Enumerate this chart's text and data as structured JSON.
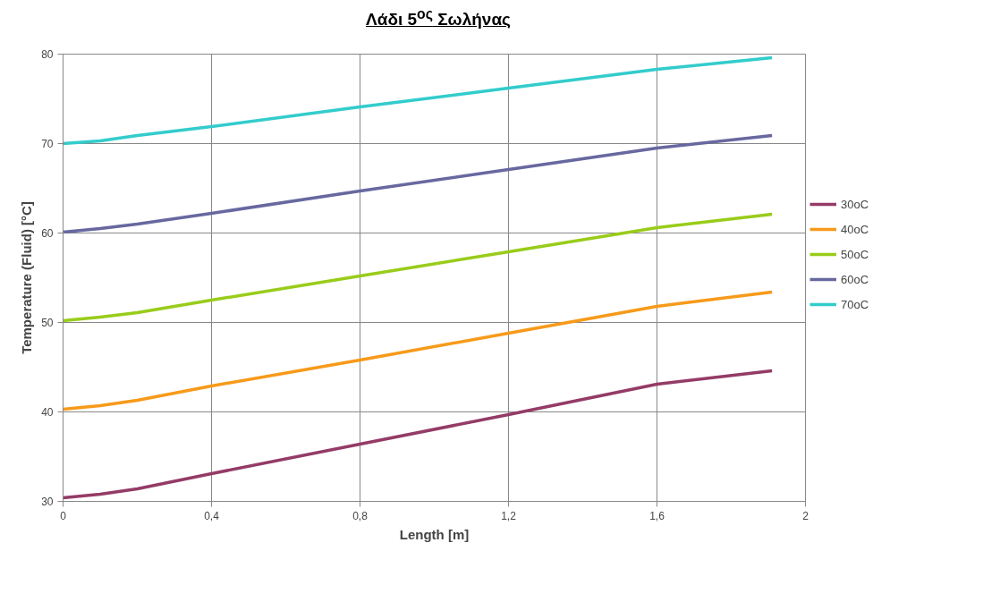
{
  "chart_data": {
    "type": "line",
    "title": "Λάδι 5$^{ος}$ Σωλήνας",
    "xlabel": "Length [m]",
    "ylabel": "Temperature (Fluid) [°C]",
    "x": [
      0,
      0.1,
      0.2,
      0.4,
      0.8,
      1.2,
      1.6,
      1.91
    ],
    "series": [
      {
        "name": "30oC",
        "color": "#943b66",
        "values": [
          30.4,
          30.8,
          31.4,
          33.1,
          36.4,
          39.7,
          43.1,
          44.6
        ]
      },
      {
        "name": "40oC",
        "color": "#f79a1a",
        "values": [
          40.3,
          40.7,
          41.3,
          42.9,
          45.8,
          48.8,
          51.8,
          53.4
        ]
      },
      {
        "name": "50oC",
        "color": "#99cc1a",
        "values": [
          50.2,
          50.6,
          51.1,
          52.5,
          55.2,
          57.9,
          60.6,
          62.1
        ]
      },
      {
        "name": "60oC",
        "color": "#6868a0",
        "values": [
          60.1,
          60.5,
          61.0,
          62.2,
          64.7,
          67.1,
          69.5,
          70.9
        ]
      },
      {
        "name": "70oC",
        "color": "#33cccc",
        "values": [
          70.0,
          70.3,
          70.9,
          71.9,
          74.1,
          76.2,
          78.3,
          79.6
        ]
      }
    ],
    "xlim": [
      0,
      2
    ],
    "ylim": [
      30,
      80
    ],
    "xticks": [
      0,
      {
        "value": 0.4,
        "label": "0,4"
      },
      {
        "value": 0.8,
        "label": "0,8"
      },
      {
        "value": 1.2,
        "label": "1,2"
      },
      {
        "value": 1.6,
        "label": "1,6"
      },
      2
    ],
    "yticks": [
      30,
      40,
      50,
      60,
      70,
      80
    ],
    "grid": true,
    "legend": "right",
    "marker": "none",
    "line_style": "solid"
  }
}
